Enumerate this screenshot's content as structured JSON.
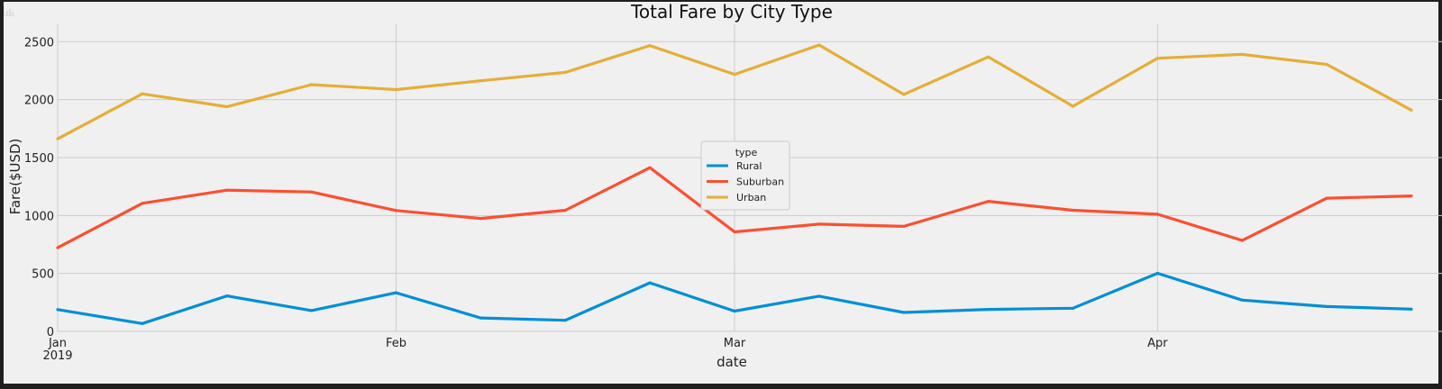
{
  "window": {
    "icon": "bar-chart-icon"
  },
  "chart_data": {
    "type": "line",
    "title": "Total Fare by City Type",
    "xlabel": "date",
    "ylabel": "Fare($USD)",
    "ylim": [
      0,
      2650
    ],
    "yticks": [
      0,
      500,
      1000,
      1500,
      2000,
      2500
    ],
    "x_type": "date",
    "x": [
      "2019-01-06",
      "2019-01-13",
      "2019-01-20",
      "2019-01-27",
      "2019-02-03",
      "2019-02-10",
      "2019-02-17",
      "2019-02-24",
      "2019-03-03",
      "2019-03-10",
      "2019-03-17",
      "2019-03-24",
      "2019-03-31",
      "2019-04-07",
      "2019-04-14",
      "2019-04-21",
      "2019-04-28"
    ],
    "xlim": [
      "2019-01-06",
      "2019-04-28"
    ],
    "xticks": [
      {
        "date": "2019-01-06",
        "label": "Jan",
        "sublabel": "2019"
      },
      {
        "date": "2019-02-03",
        "label": "Feb",
        "sublabel": ""
      },
      {
        "date": "2019-03-03",
        "label": "Mar",
        "sublabel": ""
      },
      {
        "date": "2019-04-07",
        "label": "Apr",
        "sublabel": ""
      }
    ],
    "grid": true,
    "legend_title": "type",
    "legend_position": "center",
    "series": [
      {
        "name": "Rural",
        "color": "#008fd5",
        "values": [
          187.92,
          67.65,
          306.0,
          179.5,
          333.08,
          115.8,
          95.82,
          419.06,
          175.14,
          303.94,
          163.39,
          189.76,
          199.42,
          501.24,
          269.79,
          214.14,
          191.85
        ]
      },
      {
        "name": "Suburban",
        "color": "#fc4f30",
        "values": [
          721.6,
          1105.13,
          1218.2,
          1203.28,
          1042.79,
          974.34,
          1045.5,
          1412.74,
          858.46,
          925.27,
          906.2,
          1122.2,
          1045.06,
          1010.73,
          784.82,
          1149.27,
          1169.04
        ]
      },
      {
        "name": "Urban",
        "color": "#e5ae38",
        "values": [
          1661.68,
          2050.43,
          1939.02,
          2129.51,
          2086.94,
          2162.64,
          2235.07,
          2466.29,
          2218.2,
          2470.93,
          2044.42,
          2368.37,
          1942.77,
          2356.7,
          2390.72,
          2303.8,
          1909.51
        ]
      }
    ]
  }
}
